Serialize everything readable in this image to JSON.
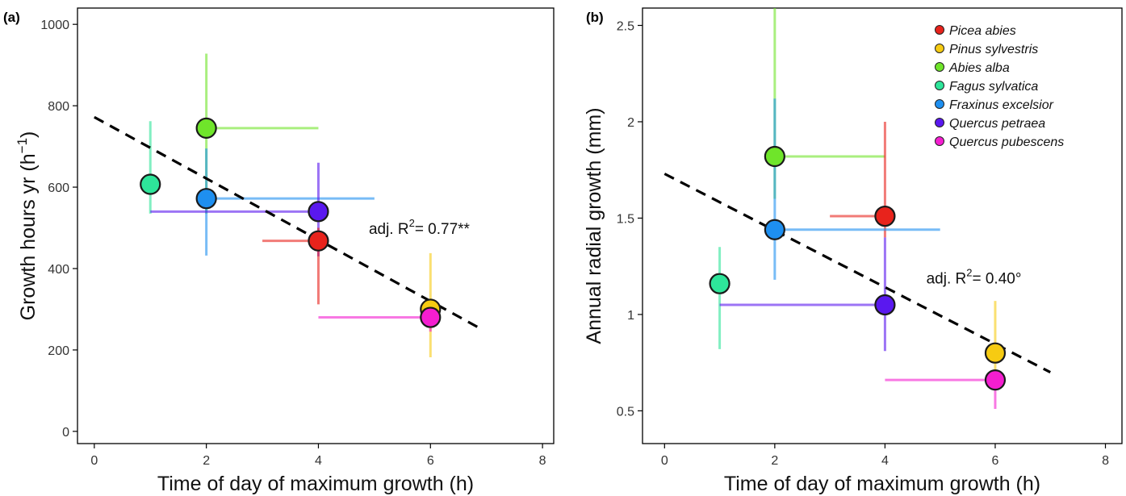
{
  "chart_data": [
    {
      "type": "scatter",
      "panel_label": "(a)",
      "xlabel": "Time of day of maximum growth (h)",
      "ylabel": "Growth hours yr (h",
      "ylabel_sup": "−1",
      "ylabel_close": ")",
      "xlim": [
        -0.3,
        8.2
      ],
      "ylim": [
        -30,
        1040
      ],
      "xticks": [
        0,
        2,
        4,
        6,
        8
      ],
      "yticks": [
        0,
        200,
        400,
        600,
        800,
        1000
      ],
      "annotation": {
        "prefix": "adj. R",
        "sup": "2",
        "suffix": "= 0.77**",
        "x": 4.9,
        "y": 485
      },
      "regression": {
        "x": [
          0,
          6.9
        ],
        "y": [
          772,
          252
        ]
      },
      "points": [
        {
          "species": "Abies alba",
          "x": 2,
          "y": 745,
          "xerr": [
            2,
            4
          ],
          "yerr": [
            535,
            928
          ]
        },
        {
          "species": "Fagus sylvatica",
          "x": 1,
          "y": 607,
          "xerr": null,
          "yerr": [
            535,
            762
          ]
        },
        {
          "species": "Fraxinus excelsior",
          "x": 2,
          "y": 572,
          "xerr": [
            2,
            5
          ],
          "yerr": [
            432,
            695
          ]
        },
        {
          "species": "Quercus petraea",
          "x": 4,
          "y": 540,
          "xerr": [
            1,
            4
          ],
          "yerr": [
            430,
            660
          ]
        },
        {
          "species": "Picea abies",
          "x": 4,
          "y": 468,
          "xerr": [
            3,
            4
          ],
          "yerr": [
            312,
            500
          ]
        },
        {
          "species": "Pinus sylvestris",
          "x": 6,
          "y": 300,
          "xerr": null,
          "yerr": [
            182,
            438
          ]
        },
        {
          "species": "Quercus pubescens",
          "x": 6,
          "y": 280,
          "xerr": [
            4,
            6
          ],
          "yerr": [
            245,
            300
          ]
        }
      ]
    },
    {
      "type": "scatter",
      "panel_label": "(b)",
      "xlabel": "Time of day of maximum growth (h)",
      "ylabel": "Annual radial growth (mm)",
      "xlim": [
        -0.4,
        8.3
      ],
      "ylim": [
        0.33,
        2.59
      ],
      "xticks": [
        0,
        2,
        4,
        6,
        8
      ],
      "yticks": [
        0.5,
        1,
        1.5,
        2,
        2.5
      ],
      "annotation": {
        "prefix": "adj. R",
        "sup": "2",
        "suffix": "= 0.40°",
        "x": 4.75,
        "y": 1.16
      },
      "regression": {
        "x": [
          0,
          7
        ],
        "y": [
          1.73,
          0.7
        ]
      },
      "points": [
        {
          "species": "Abies alba",
          "x": 2,
          "y": 1.82,
          "xerr": [
            2,
            4
          ],
          "yerr": [
            1.6,
            2.59
          ]
        },
        {
          "species": "Picea abies",
          "x": 4,
          "y": 1.51,
          "xerr": [
            3,
            4
          ],
          "yerr": [
            1.4,
            2.0
          ]
        },
        {
          "species": "Fraxinus excelsior",
          "x": 2,
          "y": 1.44,
          "xerr": [
            2,
            5
          ],
          "yerr": [
            1.18,
            2.12
          ]
        },
        {
          "species": "Fagus sylvatica",
          "x": 1,
          "y": 1.16,
          "xerr": null,
          "yerr": [
            0.82,
            1.35
          ]
        },
        {
          "species": "Quercus petraea",
          "x": 4,
          "y": 1.05,
          "xerr": [
            1,
            4
          ],
          "yerr": [
            0.81,
            1.4
          ]
        },
        {
          "species": "Pinus sylvestris",
          "x": 6,
          "y": 0.8,
          "xerr": null,
          "yerr": [
            0.7,
            1.07
          ]
        },
        {
          "species": "Quercus pubescens",
          "x": 6,
          "y": 0.66,
          "xerr": [
            4,
            6
          ],
          "yerr": [
            0.51,
            0.7
          ]
        }
      ]
    }
  ],
  "legend": {
    "placement": "top-right of panel (b)",
    "entries": [
      {
        "label": "Picea abies",
        "color": "#e8231c"
      },
      {
        "label": "Pinus sylvestris",
        "color": "#f6cb12"
      },
      {
        "label": "Abies alba",
        "color": "#6fe52a"
      },
      {
        "label": "Fagus sylvatica",
        "color": "#2ee59a"
      },
      {
        "label": "Fraxinus excelsior",
        "color": "#1e8ff0"
      },
      {
        "label": "Quercus petraea",
        "color": "#5a18ef"
      },
      {
        "label": "Quercus pubescens",
        "color": "#f41ed0"
      }
    ]
  }
}
